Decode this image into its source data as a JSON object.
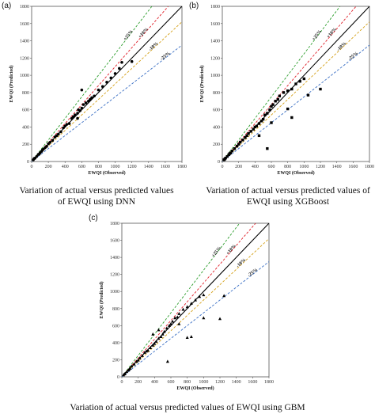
{
  "chart_data": [
    {
      "type": "scatter",
      "panel_label": "(a)",
      "marker": "circle",
      "caption": "Variation of actual versus predicted values of EWQI using DNN",
      "xlabel": "EWQI  (Observed)",
      "ylabel": "EWQI  (Predicted)",
      "xlim": [
        0,
        1800
      ],
      "ylim": [
        0,
        1800
      ],
      "xticks": [
        0,
        200,
        400,
        600,
        800,
        1000,
        1200,
        1400,
        1600,
        1800
      ],
      "yticks": [
        0,
        200,
        400,
        600,
        800,
        1000,
        1200,
        1400,
        1600,
        1800
      ],
      "lines": [
        {
          "label": "+25%",
          "slope": 1.25,
          "color": "#2e9e2e"
        },
        {
          "label": "+10%",
          "slope": 1.1,
          "color": "#e0202a"
        },
        {
          "label": "",
          "slope": 1.0,
          "color": "#000000"
        },
        {
          "label": "-10%",
          "slope": 0.9,
          "color": "#d4a017"
        },
        {
          "label": "-25%",
          "slope": 0.75,
          "color": "#3a6fc4"
        }
      ],
      "points": [
        [
          20,
          20
        ],
        [
          40,
          38
        ],
        [
          60,
          58
        ],
        [
          80,
          82
        ],
        [
          100,
          100
        ],
        [
          120,
          118
        ],
        [
          140,
          142
        ],
        [
          160,
          160
        ],
        [
          180,
          176
        ],
        [
          200,
          205
        ],
        [
          220,
          222
        ],
        [
          250,
          245
        ],
        [
          280,
          285
        ],
        [
          300,
          300
        ],
        [
          320,
          318
        ],
        [
          350,
          345
        ],
        [
          380,
          390
        ],
        [
          400,
          410
        ],
        [
          420,
          430
        ],
        [
          450,
          440
        ],
        [
          480,
          500
        ],
        [
          500,
          520
        ],
        [
          520,
          540
        ],
        [
          550,
          560
        ],
        [
          560,
          600
        ],
        [
          580,
          590
        ],
        [
          600,
          620
        ],
        [
          620,
          660
        ],
        [
          650,
          680
        ],
        [
          680,
          700
        ],
        [
          700,
          720
        ],
        [
          720,
          740
        ],
        [
          750,
          760
        ],
        [
          800,
          830
        ],
        [
          850,
          870
        ],
        [
          900,
          920
        ],
        [
          950,
          970
        ],
        [
          1000,
          1020
        ],
        [
          1050,
          1080
        ],
        [
          1080,
          1150
        ],
        [
          1200,
          1160
        ],
        [
          600,
          830
        ],
        [
          550,
          500
        ],
        [
          30,
          35
        ],
        [
          90,
          85
        ],
        [
          130,
          135
        ]
      ]
    },
    {
      "type": "scatter",
      "panel_label": "(b)",
      "marker": "square",
      "caption": "Variation of actual versus predicted values of EWQI using XGBoost",
      "xlabel": "EWQI  (Observed)",
      "ylabel": "EWQI  (Predicted)",
      "xlim": [
        0,
        1800
      ],
      "ylim": [
        0,
        1800
      ],
      "xticks": [
        0,
        200,
        400,
        600,
        800,
        1000,
        1200,
        1400,
        1600,
        1800
      ],
      "yticks": [
        0,
        200,
        400,
        600,
        800,
        1000,
        1200,
        1400,
        1600,
        1800
      ],
      "lines": [
        {
          "label": "+25%",
          "slope": 1.25,
          "color": "#2e9e2e"
        },
        {
          "label": "+10%",
          "slope": 1.1,
          "color": "#e0202a"
        },
        {
          "label": "",
          "slope": 1.0,
          "color": "#000000"
        },
        {
          "label": "-10%",
          "slope": 0.9,
          "color": "#d4a017"
        },
        {
          "label": "-25%",
          "slope": 0.75,
          "color": "#3a6fc4"
        }
      ],
      "points": [
        [
          20,
          20
        ],
        [
          40,
          40
        ],
        [
          60,
          58
        ],
        [
          80,
          80
        ],
        [
          100,
          98
        ],
        [
          120,
          122
        ],
        [
          150,
          150
        ],
        [
          180,
          178
        ],
        [
          200,
          200
        ],
        [
          220,
          225
        ],
        [
          250,
          250
        ],
        [
          280,
          278
        ],
        [
          300,
          300
        ],
        [
          320,
          325
        ],
        [
          350,
          350
        ],
        [
          380,
          375
        ],
        [
          400,
          400
        ],
        [
          420,
          410
        ],
        [
          450,
          440
        ],
        [
          480,
          470
        ],
        [
          500,
          490
        ],
        [
          520,
          540
        ],
        [
          550,
          560
        ],
        [
          580,
          600
        ],
        [
          600,
          640
        ],
        [
          620,
          660
        ],
        [
          650,
          700
        ],
        [
          680,
          720
        ],
        [
          700,
          760
        ],
        [
          750,
          800
        ],
        [
          800,
          820
        ],
        [
          850,
          840
        ],
        [
          900,
          900
        ],
        [
          950,
          930
        ],
        [
          1000,
          960
        ],
        [
          550,
          150
        ],
        [
          800,
          610
        ],
        [
          850,
          510
        ],
        [
          1050,
          770
        ],
        [
          1200,
          840
        ],
        [
          450,
          300
        ],
        [
          600,
          450
        ],
        [
          30,
          28
        ],
        [
          90,
          92
        ]
      ]
    },
    {
      "type": "scatter",
      "panel_label": "(c)",
      "marker": "triangle",
      "caption": "Variation of actual versus predicted values of EWQI using GBM",
      "xlabel": "EWQI  (Observed)",
      "ylabel": "EWQI  (Predicted)",
      "xlim": [
        0,
        1800
      ],
      "ylim": [
        0,
        1800
      ],
      "xticks": [
        0,
        200,
        400,
        600,
        800,
        1000,
        1200,
        1400,
        1600,
        1800
      ],
      "yticks": [
        0,
        200,
        400,
        600,
        800,
        1000,
        1200,
        1400,
        1600,
        1800
      ],
      "lines": [
        {
          "label": "+25%",
          "slope": 1.25,
          "color": "#2e9e2e"
        },
        {
          "label": "+10%",
          "slope": 1.1,
          "color": "#e0202a"
        },
        {
          "label": "",
          "slope": 1.0,
          "color": "#000000"
        },
        {
          "label": "-10%",
          "slope": 0.9,
          "color": "#d4a017"
        },
        {
          "label": "-25%",
          "slope": 0.75,
          "color": "#3a6fc4"
        }
      ],
      "points": [
        [
          20,
          22
        ],
        [
          40,
          38
        ],
        [
          60,
          60
        ],
        [
          80,
          78
        ],
        [
          100,
          100
        ],
        [
          120,
          125
        ],
        [
          150,
          148
        ],
        [
          180,
          180
        ],
        [
          200,
          195
        ],
        [
          220,
          220
        ],
        [
          250,
          248
        ],
        [
          280,
          285
        ],
        [
          300,
          300
        ],
        [
          320,
          310
        ],
        [
          350,
          340
        ],
        [
          380,
          370
        ],
        [
          400,
          390
        ],
        [
          420,
          415
        ],
        [
          450,
          450
        ],
        [
          480,
          470
        ],
        [
          500,
          500
        ],
        [
          520,
          530
        ],
        [
          550,
          570
        ],
        [
          580,
          600
        ],
        [
          600,
          620
        ],
        [
          620,
          650
        ],
        [
          650,
          690
        ],
        [
          680,
          700
        ],
        [
          700,
          740
        ],
        [
          750,
          790
        ],
        [
          800,
          820
        ],
        [
          850,
          860
        ],
        [
          900,
          900
        ],
        [
          950,
          940
        ],
        [
          1000,
          960
        ],
        [
          560,
          180
        ],
        [
          700,
          620
        ],
        [
          800,
          460
        ],
        [
          850,
          470
        ],
        [
          1000,
          690
        ],
        [
          1200,
          680
        ],
        [
          1250,
          950
        ],
        [
          380,
          500
        ],
        [
          450,
          550
        ],
        [
          30,
          32
        ],
        [
          90,
          88
        ]
      ]
    }
  ]
}
